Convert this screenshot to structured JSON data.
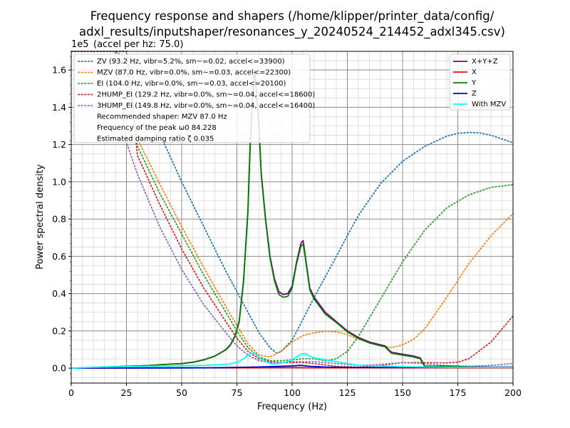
{
  "title": {
    "line1": "Frequency response and shapers (/home/klipper/printer_data/config/",
    "line2": "adxl_results/inputshaper/resonances_y_20240524_214452_adxl345.csv)"
  },
  "chart_data": {
    "type": "line",
    "xlabel": "Frequency (Hz)",
    "ylabel": "Power spectral density",
    "y_offset_text": "1e5",
    "accel_per_hz_text": "(accel per hz: 75.0)",
    "xlim": [
      0,
      200
    ],
    "ylim": [
      -0.08,
      1.7
    ],
    "x_ticks": [
      0,
      25,
      50,
      75,
      100,
      125,
      150,
      175,
      200
    ],
    "y_ticks": [
      0.0,
      0.2,
      0.4,
      0.6,
      0.8,
      1.0,
      1.2,
      1.4,
      1.6
    ],
    "y_tick_labels": [
      "0.0",
      "0.2",
      "0.4",
      "0.6",
      "0.8",
      "1.0",
      "1.2",
      "1.4",
      "1.6"
    ],
    "grid": true,
    "legend_left_placement": "top-left",
    "legend_right_placement": "top-right",
    "psd_series": [
      {
        "name": "X+Y+Z",
        "color": "#800080",
        "x": [
          0,
          5,
          10,
          15,
          20,
          25,
          30,
          35,
          40,
          45,
          50,
          55,
          60,
          65,
          70,
          72,
          74,
          76,
          78,
          80,
          81,
          82,
          83,
          84,
          85,
          86,
          88,
          90,
          92,
          94,
          96,
          98,
          100,
          102,
          104,
          105,
          106,
          108,
          110,
          115,
          120,
          125,
          130,
          135,
          140,
          142,
          145,
          150,
          155,
          158,
          160,
          165,
          170,
          175,
          180,
          185,
          190,
          195,
          200
        ],
        "y": [
          0,
          0.002,
          0.004,
          0.006,
          0.008,
          0.01,
          0.012,
          0.014,
          0.018,
          0.022,
          0.025,
          0.032,
          0.045,
          0.065,
          0.1,
          0.125,
          0.17,
          0.25,
          0.47,
          0.85,
          1.2,
          1.45,
          1.6,
          1.47,
          1.3,
          1.05,
          0.8,
          0.6,
          0.48,
          0.41,
          0.395,
          0.4,
          0.44,
          0.57,
          0.67,
          0.685,
          0.6,
          0.43,
          0.38,
          0.3,
          0.25,
          0.2,
          0.165,
          0.14,
          0.125,
          0.12,
          0.085,
          0.075,
          0.065,
          0.055,
          0.012,
          0.01,
          0.012,
          0.01,
          0.008,
          0.007,
          0.006,
          0.006,
          0.006
        ]
      },
      {
        "name": "X",
        "color": "#ff0000",
        "x": [
          0,
          20,
          40,
          60,
          80,
          100,
          110,
          120,
          140,
          160,
          180,
          200
        ],
        "y": [
          0,
          0.001,
          0.002,
          0.002,
          0.002,
          0.003,
          0.002,
          0.002,
          0.002,
          0.002,
          0.002,
          0.002
        ]
      },
      {
        "name": "Y",
        "color": "#008000",
        "x": [
          0,
          5,
          10,
          15,
          20,
          25,
          30,
          35,
          40,
          45,
          50,
          55,
          60,
          65,
          70,
          72,
          74,
          76,
          78,
          80,
          81,
          82,
          83,
          84,
          85,
          86,
          88,
          90,
          92,
          94,
          96,
          98,
          100,
          102,
          104,
          105,
          106,
          108,
          110,
          115,
          120,
          125,
          130,
          135,
          140,
          142,
          145,
          150,
          155,
          158,
          160,
          165,
          170,
          175,
          180,
          185,
          190,
          195,
          200
        ],
        "y": [
          0,
          0.002,
          0.004,
          0.006,
          0.008,
          0.01,
          0.012,
          0.014,
          0.018,
          0.022,
          0.024,
          0.031,
          0.044,
          0.064,
          0.098,
          0.122,
          0.168,
          0.245,
          0.46,
          0.84,
          1.18,
          1.43,
          1.59,
          1.46,
          1.29,
          1.04,
          0.79,
          0.59,
          0.47,
          0.395,
          0.38,
          0.385,
          0.43,
          0.56,
          0.655,
          0.665,
          0.59,
          0.42,
          0.37,
          0.29,
          0.245,
          0.195,
          0.16,
          0.135,
          0.12,
          0.115,
          0.08,
          0.07,
          0.06,
          0.05,
          0.01,
          0.008,
          0.01,
          0.008,
          0.006,
          0.005,
          0.004,
          0.004,
          0.004
        ]
      },
      {
        "name": "Z",
        "color": "#0000cd",
        "x": [
          0,
          20,
          40,
          60,
          70,
          80,
          90,
          100,
          104,
          108,
          115,
          125,
          140,
          160,
          180,
          200
        ],
        "y": [
          0,
          0.001,
          0.001,
          0.002,
          0.003,
          0.005,
          0.008,
          0.012,
          0.015,
          0.01,
          0.006,
          0.004,
          0.004,
          0.004,
          0.004,
          0.005
        ]
      },
      {
        "name": "With MZV",
        "color": "#00ffff",
        "x": [
          0,
          10,
          20,
          30,
          40,
          50,
          60,
          70,
          75,
          78,
          80,
          82,
          84,
          86,
          88,
          90,
          92,
          94,
          96,
          98,
          100,
          102,
          104,
          106,
          108,
          110,
          115,
          120,
          125,
          130,
          140,
          150,
          160,
          170,
          180,
          200
        ],
        "y": [
          0,
          0.005,
          0.007,
          0.009,
          0.011,
          0.013,
          0.015,
          0.02,
          0.03,
          0.05,
          0.07,
          0.082,
          0.075,
          0.05,
          0.035,
          0.025,
          0.022,
          0.025,
          0.03,
          0.035,
          0.045,
          0.06,
          0.075,
          0.078,
          0.065,
          0.055,
          0.045,
          0.035,
          0.025,
          0.015,
          0.012,
          0.008,
          0.006,
          0.005,
          0.005,
          0.004
        ]
      }
    ],
    "shaper_series": [
      {
        "name": "ZV (93.2 Hz, vibr=5.2%, sm~=0.02, accel<=33900)",
        "color": "#1f77b4",
        "x": [
          0,
          10,
          20,
          25,
          30,
          40,
          50,
          60,
          70,
          80,
          85,
          90,
          93,
          95,
          100,
          110,
          120,
          130,
          140,
          150,
          160,
          170,
          175,
          180,
          185,
          190,
          200
        ],
        "y": [
          1.7,
          1.7,
          1.7,
          1.66,
          1.49,
          1.26,
          1.0,
          0.76,
          0.52,
          0.3,
          0.19,
          0.11,
          0.08,
          0.09,
          0.15,
          0.38,
          0.6,
          0.82,
          0.99,
          1.11,
          1.19,
          1.245,
          1.26,
          1.265,
          1.262,
          1.25,
          1.21
        ]
      },
      {
        "name": "MZV (87.0 Hz, vibr=0.0%, sm~=0.03, accel<=22300)",
        "color": "#ff7f0e",
        "x": [
          0,
          10,
          20,
          25,
          30,
          40,
          50,
          60,
          70,
          75,
          80,
          85,
          90,
          95,
          100,
          105,
          110,
          115,
          120,
          125,
          130,
          140,
          145,
          150,
          155,
          160,
          170,
          180,
          190,
          200
        ],
        "y": [
          1.7,
          1.7,
          1.7,
          1.7,
          1.23,
          0.99,
          0.76,
          0.54,
          0.33,
          0.23,
          0.13,
          0.07,
          0.06,
          0.09,
          0.14,
          0.175,
          0.19,
          0.198,
          0.195,
          0.18,
          0.155,
          0.12,
          0.11,
          0.125,
          0.155,
          0.21,
          0.38,
          0.56,
          0.71,
          0.83
        ]
      },
      {
        "name": "EI (104.0 Hz, vibr=0.0%, sm~=0.03, accel<=20100)",
        "color": "#2ca02c",
        "x": [
          0,
          10,
          20,
          25,
          30,
          40,
          50,
          60,
          70,
          75,
          80,
          85,
          90,
          95,
          100,
          105,
          110,
          115,
          120,
          125,
          130,
          140,
          150,
          160,
          170,
          180,
          190,
          200
        ],
        "y": [
          1.7,
          1.7,
          1.7,
          1.7,
          1.19,
          0.94,
          0.72,
          0.5,
          0.3,
          0.2,
          0.11,
          0.06,
          0.04,
          0.04,
          0.045,
          0.05,
          0.05,
          0.04,
          0.05,
          0.09,
          0.17,
          0.37,
          0.57,
          0.74,
          0.86,
          0.93,
          0.97,
          0.985
        ]
      },
      {
        "name": "2HUMP_EI (129.2 Hz, vibr=0.0%, sm~=0.04, accel<=18600)",
        "color": "#d62728",
        "x": [
          0,
          10,
          20,
          25,
          30,
          40,
          50,
          60,
          70,
          75,
          80,
          85,
          90,
          95,
          100,
          105,
          110,
          120,
          130,
          140,
          150,
          160,
          170,
          175,
          180,
          190,
          200
        ],
        "y": [
          1.7,
          1.7,
          1.7,
          1.7,
          1.14,
          0.88,
          0.64,
          0.43,
          0.25,
          0.16,
          0.09,
          0.05,
          0.035,
          0.03,
          0.03,
          0.03,
          0.025,
          0.01,
          0.005,
          0.015,
          0.03,
          0.03,
          0.028,
          0.032,
          0.05,
          0.14,
          0.28
        ]
      },
      {
        "name": "3HUMP_EI (149.8 Hz, vibr=0.0%, sm~=0.04, accel<=16400)",
        "color": "#9467bd",
        "x": [
          0,
          10,
          20,
          25,
          30,
          40,
          50,
          60,
          70,
          75,
          80,
          85,
          90,
          95,
          100,
          110,
          120,
          130,
          140,
          150,
          160,
          170,
          180,
          190,
          200
        ],
        "y": [
          1.7,
          1.7,
          1.7,
          1.21,
          1.04,
          0.76,
          0.53,
          0.34,
          0.19,
          0.12,
          0.07,
          0.04,
          0.03,
          0.03,
          0.035,
          0.035,
          0.025,
          0.015,
          0.02,
          0.03,
          0.025,
          0.012,
          0.01,
          0.015,
          0.025
        ]
      }
    ],
    "legend_left_extra": [
      "Recommended shaper: MZV 87.0 Hz",
      "Frequency of the peak ω0 84.228",
      "Estimated damping ratio ζ 0.035"
    ]
  }
}
